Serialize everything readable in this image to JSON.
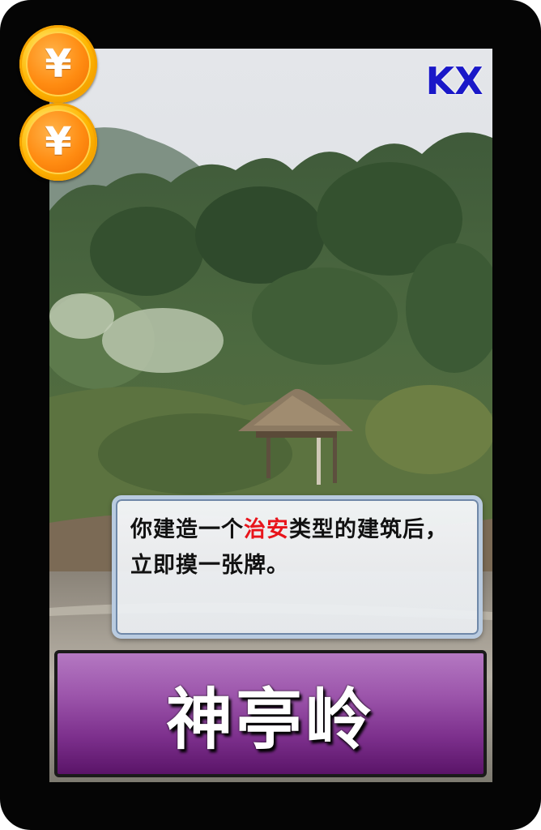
{
  "card": {
    "cost_symbols": [
      "¥",
      "¥"
    ],
    "edition": "KX",
    "ability": {
      "before_keyword": "你建造一个",
      "keyword": "治安",
      "after_keyword": "类型的建筑后，立即摸一张牌。"
    },
    "name": "神亭岭"
  },
  "colors": {
    "keyword": "#e8141b",
    "edition": "#1a18c8",
    "name_bar": "#8e44a0",
    "coin": "#ff8c12"
  }
}
